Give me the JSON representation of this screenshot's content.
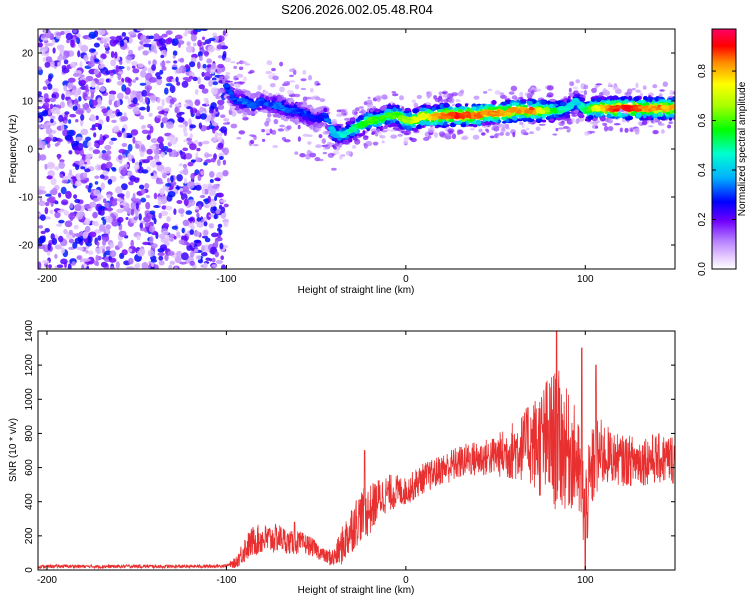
{
  "title": "S206.2026.002.05.48.R04",
  "chart_data": [
    {
      "type": "heatmap",
      "xlabel": "Height of straight line (km)",
      "ylabel": "Frequency (Hz)",
      "xlim": [
        -205,
        150
      ],
      "ylim": [
        -25,
        25
      ],
      "x_ticks": [
        -200,
        -100,
        0,
        100
      ],
      "x_tick_labels": [
        "-200",
        "-100",
        "0",
        "100"
      ],
      "y_ticks": [
        20,
        10,
        0,
        -10,
        -20
      ],
      "y_tick_labels": [
        "20",
        "10",
        "0",
        "-10",
        "-20"
      ],
      "colorbar": {
        "label": "Normalized spectral amplitude",
        "range": [
          0,
          0.97
        ],
        "ticks": [
          0.0,
          0.2,
          0.4,
          0.6,
          0.8
        ],
        "tick_labels": [
          "0.0",
          "0.2",
          "0.4",
          "0.6",
          "0.8"
        ]
      },
      "noise_region": {
        "x_range": [
          -205,
          -100
        ],
        "amplitude_range": [
          0.05,
          0.3
        ]
      },
      "ridge": {
        "x": [
          -100,
          -95,
          -90,
          -85,
          -80,
          -75,
          -70,
          -65,
          -60,
          -55,
          -50,
          -45,
          -40,
          -35,
          -30,
          -25,
          -20,
          -15,
          -10,
          -5,
          0,
          5,
          10,
          15,
          20,
          25,
          30,
          35,
          40,
          45,
          50,
          55,
          60,
          65,
          70,
          75,
          80,
          85,
          90,
          95,
          100,
          105,
          110,
          115,
          120,
          125,
          130,
          135,
          140,
          145,
          150
        ],
        "frequency": [
          13,
          10,
          10,
          9,
          10,
          9,
          9,
          8,
          8,
          7,
          6,
          7,
          3,
          3,
          4,
          5,
          6,
          6,
          7,
          7,
          6,
          6,
          7,
          6.5,
          7,
          7,
          7,
          7,
          7,
          7.5,
          7.5,
          7.5,
          8,
          8,
          8,
          8,
          8,
          8,
          8.5,
          10,
          8,
          8.5,
          8.5,
          8.5,
          8.5,
          8.5,
          8.5,
          8.5,
          8.5,
          8.5,
          8.5
        ],
        "amplitude": [
          0.3,
          0.3,
          0.35,
          0.3,
          0.3,
          0.3,
          0.35,
          0.3,
          0.3,
          0.3,
          0.25,
          0.3,
          0.4,
          0.45,
          0.5,
          0.55,
          0.6,
          0.55,
          0.6,
          0.6,
          0.65,
          0.7,
          0.75,
          0.8,
          0.85,
          0.85,
          0.9,
          0.85,
          0.85,
          0.8,
          0.85,
          0.8,
          0.85,
          0.8,
          0.85,
          0.75,
          0.6,
          0.5,
          0.45,
          0.4,
          0.5,
          0.7,
          0.8,
          0.85,
          0.9,
          0.9,
          0.85,
          0.8,
          0.85,
          0.8,
          0.8
        ]
      }
    },
    {
      "type": "line",
      "xlabel": "Height of straight line (km)",
      "ylabel": "SNR (10 * v/v)",
      "xlim": [
        -205,
        150
      ],
      "ylim": [
        0,
        1400
      ],
      "x_ticks": [
        -200,
        -100,
        0,
        100
      ],
      "x_tick_labels": [
        "-200",
        "-100",
        "0",
        "100"
      ],
      "y_ticks": [
        0,
        200,
        400,
        600,
        800,
        1000,
        1200,
        1400
      ],
      "y_tick_labels": [
        "0",
        "200",
        "400",
        "600",
        "800",
        "1000",
        "1200",
        "1400"
      ],
      "series": [
        {
          "color": "#e83030",
          "x": [
            -205,
            -190,
            -170,
            -150,
            -130,
            -110,
            -100,
            -95,
            -90,
            -85,
            -80,
            -75,
            -70,
            -65,
            -60,
            -55,
            -50,
            -45,
            -40,
            -35,
            -30,
            -25,
            -20,
            -15,
            -10,
            -5,
            0,
            5,
            10,
            15,
            20,
            25,
            30,
            35,
            40,
            45,
            50,
            55,
            60,
            65,
            70,
            75,
            80,
            85,
            90,
            95,
            100,
            105,
            110,
            115,
            120,
            125,
            130,
            135,
            140,
            145,
            150
          ],
          "mean": [
            20,
            22,
            20,
            22,
            20,
            22,
            25,
            40,
            120,
            170,
            180,
            180,
            190,
            160,
            160,
            150,
            120,
            80,
            70,
            150,
            250,
            320,
            350,
            420,
            450,
            460,
            460,
            500,
            540,
            560,
            590,
            610,
            630,
            650,
            650,
            660,
            670,
            680,
            700,
            720,
            740,
            740,
            760,
            760,
            700,
            650,
            350,
            650,
            680,
            660,
            640,
            640,
            640,
            650,
            650,
            650,
            650
          ],
          "amp": [
            10,
            10,
            10,
            10,
            10,
            10,
            10,
            30,
            80,
            90,
            90,
            90,
            80,
            70,
            70,
            60,
            50,
            40,
            60,
            120,
            150,
            150,
            150,
            120,
            110,
            100,
            80,
            90,
            90,
            90,
            90,
            100,
            100,
            100,
            110,
            110,
            120,
            150,
            180,
            200,
            250,
            330,
            400,
            420,
            350,
            300,
            280,
            250,
            200,
            150,
            150,
            150,
            150,
            150,
            150,
            150,
            150
          ],
          "peaks": [
            {
              "x": 84,
              "y": 1400
            },
            {
              "x": 98,
              "y": 1300
            },
            {
              "x": 100,
              "y": 0
            },
            {
              "x": 106,
              "y": 1200
            },
            {
              "x": 68,
              "y": 950
            },
            {
              "x": -23,
              "y": 700
            },
            {
              "x": -62,
              "y": 280
            }
          ]
        }
      ]
    }
  ]
}
